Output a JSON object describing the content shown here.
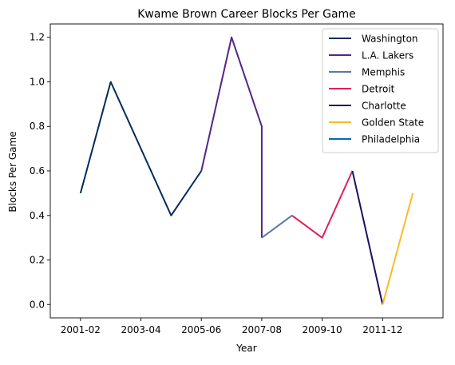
{
  "chart_data": {
    "type": "line",
    "title": "Kwame Brown Career Blocks Per Game",
    "xlabel": "Year",
    "ylabel": "Blocks Per Game",
    "x_ticks": [
      "2001-02",
      "2003-04",
      "2005-06",
      "2007-08",
      "2009-10",
      "2011-12"
    ],
    "y_ticks": [
      "0.0",
      "0.2",
      "0.4",
      "0.6",
      "0.8",
      "1.0",
      "1.2"
    ],
    "xlim": [
      "2000-01",
      "2013-14"
    ],
    "ylim": [
      -0.06,
      1.26
    ],
    "grid": false,
    "legend_position": "top-right",
    "series": [
      {
        "name": "Washington",
        "color": "#002B5C",
        "points": [
          {
            "x": "2001-02",
            "y": 0.5
          },
          {
            "x": "2002-03",
            "y": 1.0
          },
          {
            "x": "2003-04",
            "y": 0.7
          },
          {
            "x": "2004-05",
            "y": 0.4
          },
          {
            "x": "2005-06",
            "y": 0.6
          }
        ]
      },
      {
        "name": "L.A. Lakers",
        "color": "#552583",
        "points": [
          {
            "x": "2005-06",
            "y": 0.6
          },
          {
            "x": "2006-07",
            "y": 1.2
          },
          {
            "x": "2007-08",
            "y": 0.8
          },
          {
            "x": "2007-08",
            "y": 0.3
          }
        ]
      },
      {
        "name": "Memphis",
        "color": "#5D76A9",
        "points": [
          {
            "x": "2007-08",
            "y": 0.3
          },
          {
            "x": "2008-09",
            "y": 0.4
          }
        ]
      },
      {
        "name": "Detroit",
        "color": "#E01E5A",
        "points": [
          {
            "x": "2008-09",
            "y": 0.4
          },
          {
            "x": "2009-10",
            "y": 0.3
          },
          {
            "x": "2010-11",
            "y": 0.6
          }
        ]
      },
      {
        "name": "Charlotte",
        "color": "#1D1160",
        "points": [
          {
            "x": "2010-11",
            "y": 0.6
          },
          {
            "x": "2011-12",
            "y": 0.0
          }
        ]
      },
      {
        "name": "Golden State",
        "color": "#FDB927",
        "points": [
          {
            "x": "2011-12",
            "y": 0.0
          },
          {
            "x": "2012-13",
            "y": 0.5
          }
        ]
      },
      {
        "name": "Philadelphia",
        "color": "#006BB6",
        "points": []
      }
    ]
  }
}
